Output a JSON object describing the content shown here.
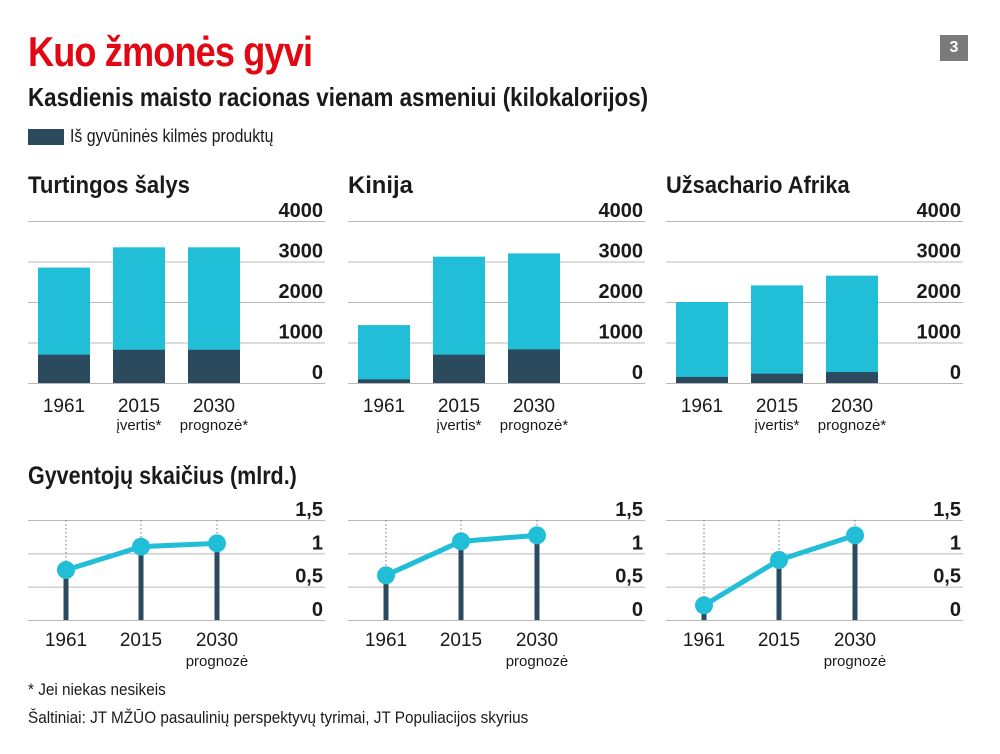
{
  "header": {
    "title": "Kuo žmonės gyvi",
    "subtitle": "Kasdienis maisto racionas vienam asmeniui (kilokalorijos)",
    "page_number": "3"
  },
  "legend": {
    "label": "Iš gyvūninės kilmės produktų",
    "color": "#2b4a5e"
  },
  "colors": {
    "total": "#21bed8",
    "animal": "#2b4a5e",
    "line": "#21bed8",
    "stem": "#2b4a5e",
    "grid": "#b8b8b8"
  },
  "population_section_title": "Gyventojų skaičius (mlrd.)",
  "footnote": "* Jei niekas nesikeis",
  "source": "Šaltiniai: JT MŽŪO pasaulinių perspektyvų tyrimai, JT Populiacijos skyrius",
  "chart_data": [
    {
      "type": "bar",
      "panel": "calories",
      "title": "Turtingos šalys",
      "categories": [
        "1961",
        "2015",
        "2030"
      ],
      "category_notes": [
        "",
        "įvertis*",
        "prognozė*"
      ],
      "series": [
        {
          "name": "",
          "values": [
            2850,
            3350,
            3350
          ]
        },
        {
          "name": "Iš gyvūninės kilmės produktų",
          "values": [
            700,
            820,
            820
          ]
        }
      ],
      "ylim": [
        0,
        4000
      ],
      "yticks": [
        "4000",
        "3000",
        "2000",
        "1000",
        "0"
      ]
    },
    {
      "type": "bar",
      "panel": "calories",
      "title": "Kinija",
      "categories": [
        "1961",
        "2015",
        "2030"
      ],
      "category_notes": [
        "",
        "įvertis*",
        "prognozė*"
      ],
      "series": [
        {
          "name": "",
          "values": [
            1430,
            3120,
            3200
          ]
        },
        {
          "name": "Iš gyvūninės kilmės produktų",
          "values": [
            90,
            700,
            830
          ]
        }
      ],
      "ylim": [
        0,
        4000
      ],
      "yticks": [
        "4000",
        "3000",
        "2000",
        "1000",
        "0"
      ]
    },
    {
      "type": "bar",
      "panel": "calories",
      "title": "Užsachario Afrika",
      "categories": [
        "1961",
        "2015",
        "2030"
      ],
      "category_notes": [
        "",
        "įvertis*",
        "prognozė*"
      ],
      "series": [
        {
          "name": "",
          "values": [
            2000,
            2410,
            2650
          ]
        },
        {
          "name": "Iš gyvūninės kilmės produktų",
          "values": [
            150,
            230,
            270
          ]
        }
      ],
      "ylim": [
        0,
        4000
      ],
      "yticks": [
        "4000",
        "3000",
        "2000",
        "1000",
        "0"
      ]
    },
    {
      "type": "line",
      "panel": "population",
      "title": "",
      "x": [
        "1961",
        "2015",
        "2030"
      ],
      "x_notes": [
        "",
        "",
        "prognozė"
      ],
      "values": [
        0.75,
        1.1,
        1.15
      ],
      "ylim": [
        0,
        1.5
      ],
      "yticks": [
        "1,5",
        "1",
        "0,5",
        "0"
      ]
    },
    {
      "type": "line",
      "panel": "population",
      "title": "",
      "x": [
        "1961",
        "2015",
        "2030"
      ],
      "x_notes": [
        "",
        "",
        "prognozė"
      ],
      "values": [
        0.67,
        1.18,
        1.27
      ],
      "ylim": [
        0,
        1.5
      ],
      "yticks": [
        "1,5",
        "1",
        "0,5",
        "0"
      ]
    },
    {
      "type": "line",
      "panel": "population",
      "title": "",
      "x": [
        "1961",
        "2015",
        "2030"
      ],
      "x_notes": [
        "",
        "",
        "prognozė"
      ],
      "values": [
        0.22,
        0.9,
        1.27
      ],
      "ylim": [
        0,
        1.5
      ],
      "yticks": [
        "1,5",
        "1",
        "0,5",
        "0"
      ]
    }
  ]
}
